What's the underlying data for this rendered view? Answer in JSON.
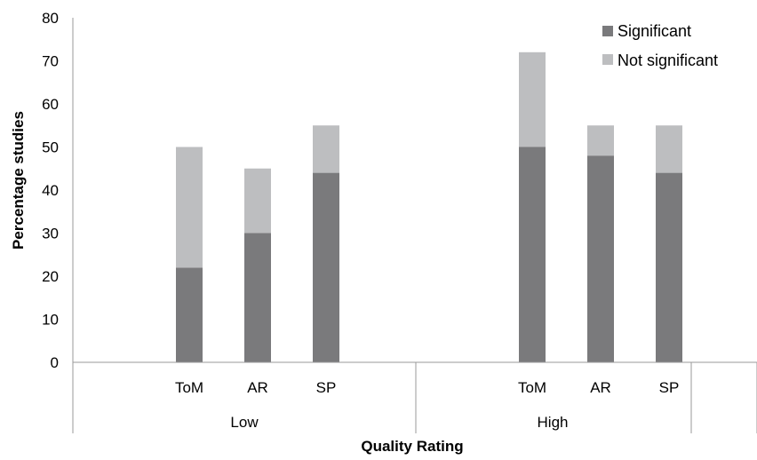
{
  "chart_data": {
    "type": "bar",
    "stacked": true,
    "groups": [
      "Low",
      "High"
    ],
    "categories": [
      "ToM",
      "AR",
      "SP"
    ],
    "series": [
      {
        "name": "Significant",
        "color": "#7a7a7c",
        "values": {
          "Low": [
            22,
            30,
            44
          ],
          "High": [
            50,
            48,
            44
          ]
        }
      },
      {
        "name": "Not significant",
        "color": "#bdbec0",
        "values": {
          "Low": [
            28,
            15,
            11
          ],
          "High": [
            22,
            7,
            11
          ]
        }
      }
    ],
    "xlabel": "Quality Rating",
    "ylabel": "Percentage studies",
    "ylim": [
      0,
      80
    ],
    "yticks": [
      0,
      10,
      20,
      30,
      40,
      50,
      60,
      70,
      80
    ],
    "grid": false,
    "legend_position": "top-right"
  }
}
